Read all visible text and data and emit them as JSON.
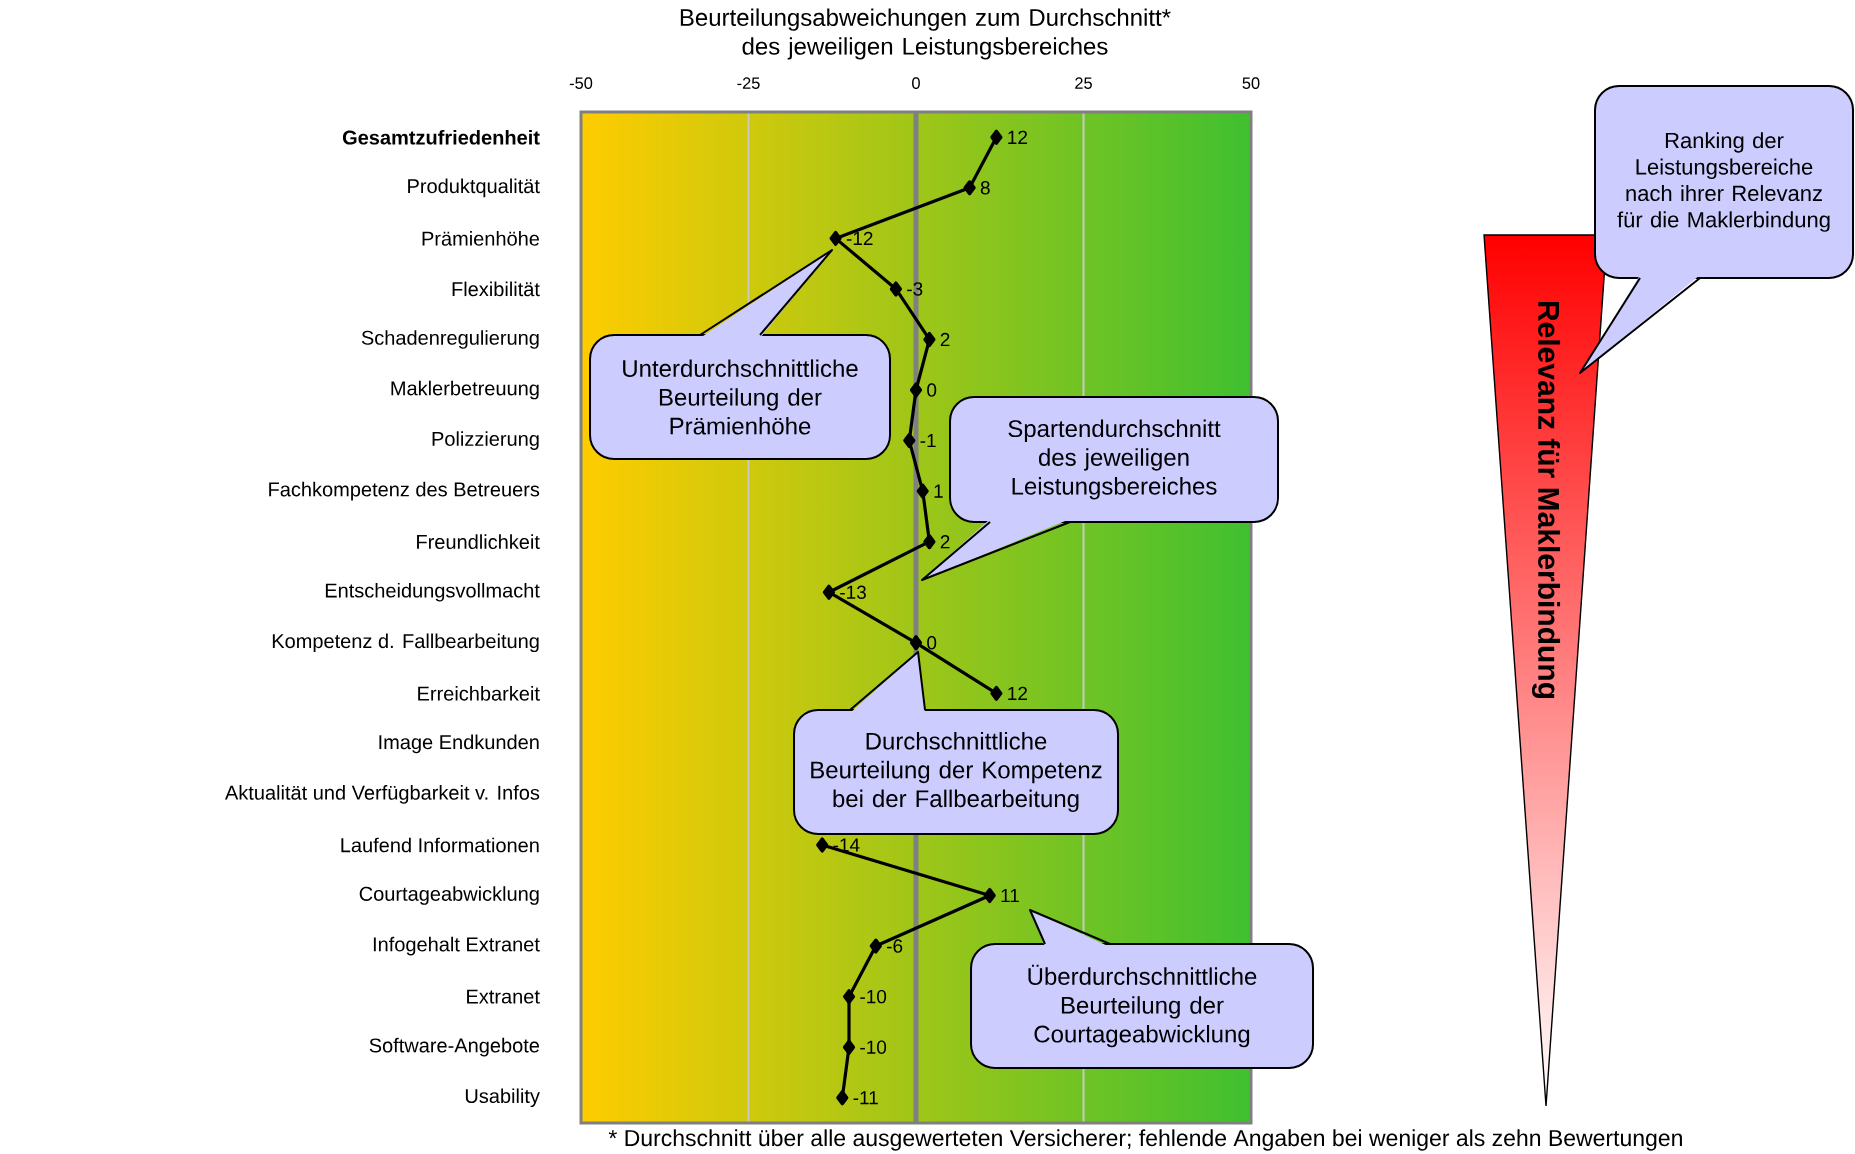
{
  "chart_data": {
    "type": "line",
    "orientation": "horizontal",
    "title": "Beurteilungsabweichungen zum Durchschnitt* des jeweiligen Leistungsbereiches",
    "categories": [
      "Gesamtzufriedenheit",
      "Produktqualität",
      "Prämienhöhe",
      "Flexibilität",
      "Schadenregulierung",
      "Maklerbetreuung",
      "Polizzierung",
      "Fachkompetenz des Betreuers",
      "Freundlichkeit",
      "Entscheidungsvollmacht",
      "Kompetenz d. Fallbearbeitung",
      "Erreichbarkeit",
      "Image Endkunden",
      "Aktualität und Verfügbarkeit v. Infos",
      "Laufend Informationen",
      "Courtageabwicklung",
      "Infogehalt Extranet",
      "Extranet",
      "Software-Angebote",
      "Usability"
    ],
    "series": [
      {
        "color": "#000000",
        "values": [
          12,
          8,
          -12,
          -3,
          2,
          0,
          -1,
          1,
          2,
          -13,
          0,
          12,
          null,
          null,
          -14,
          11,
          -6,
          -10,
          -10,
          -11
        ]
      }
    ],
    "xlim": [
      -50,
      50
    ],
    "xticks": [
      -50,
      -25,
      0,
      25,
      50
    ],
    "grid": "x",
    "marker": "diamond",
    "data_labels": true,
    "ref_lines": [
      {
        "axis": "x",
        "value": 0,
        "color": "#808080"
      }
    ],
    "annotations": [
      "Unterdurchschnittliche Beurteilung der Prämienhöhe",
      "Spartendurchschnitt des jeweiligen Leistungsbereiches",
      "Durchschnittliche Beurteilung der Kompetenz bei der Fallbearbeitung",
      "Überdurchschnittliche Beurteilung der Courtageabwicklung",
      "Ranking der Leistungsbereiche nach ihrer Relevanz für die Maklerbindung",
      "Relevanz für Maklerbindung",
      "* Durchschnitt über alle ausgewerteten Versicherer; fehlende Angaben bei weniger als zehn Bewertungen"
    ]
  }
}
